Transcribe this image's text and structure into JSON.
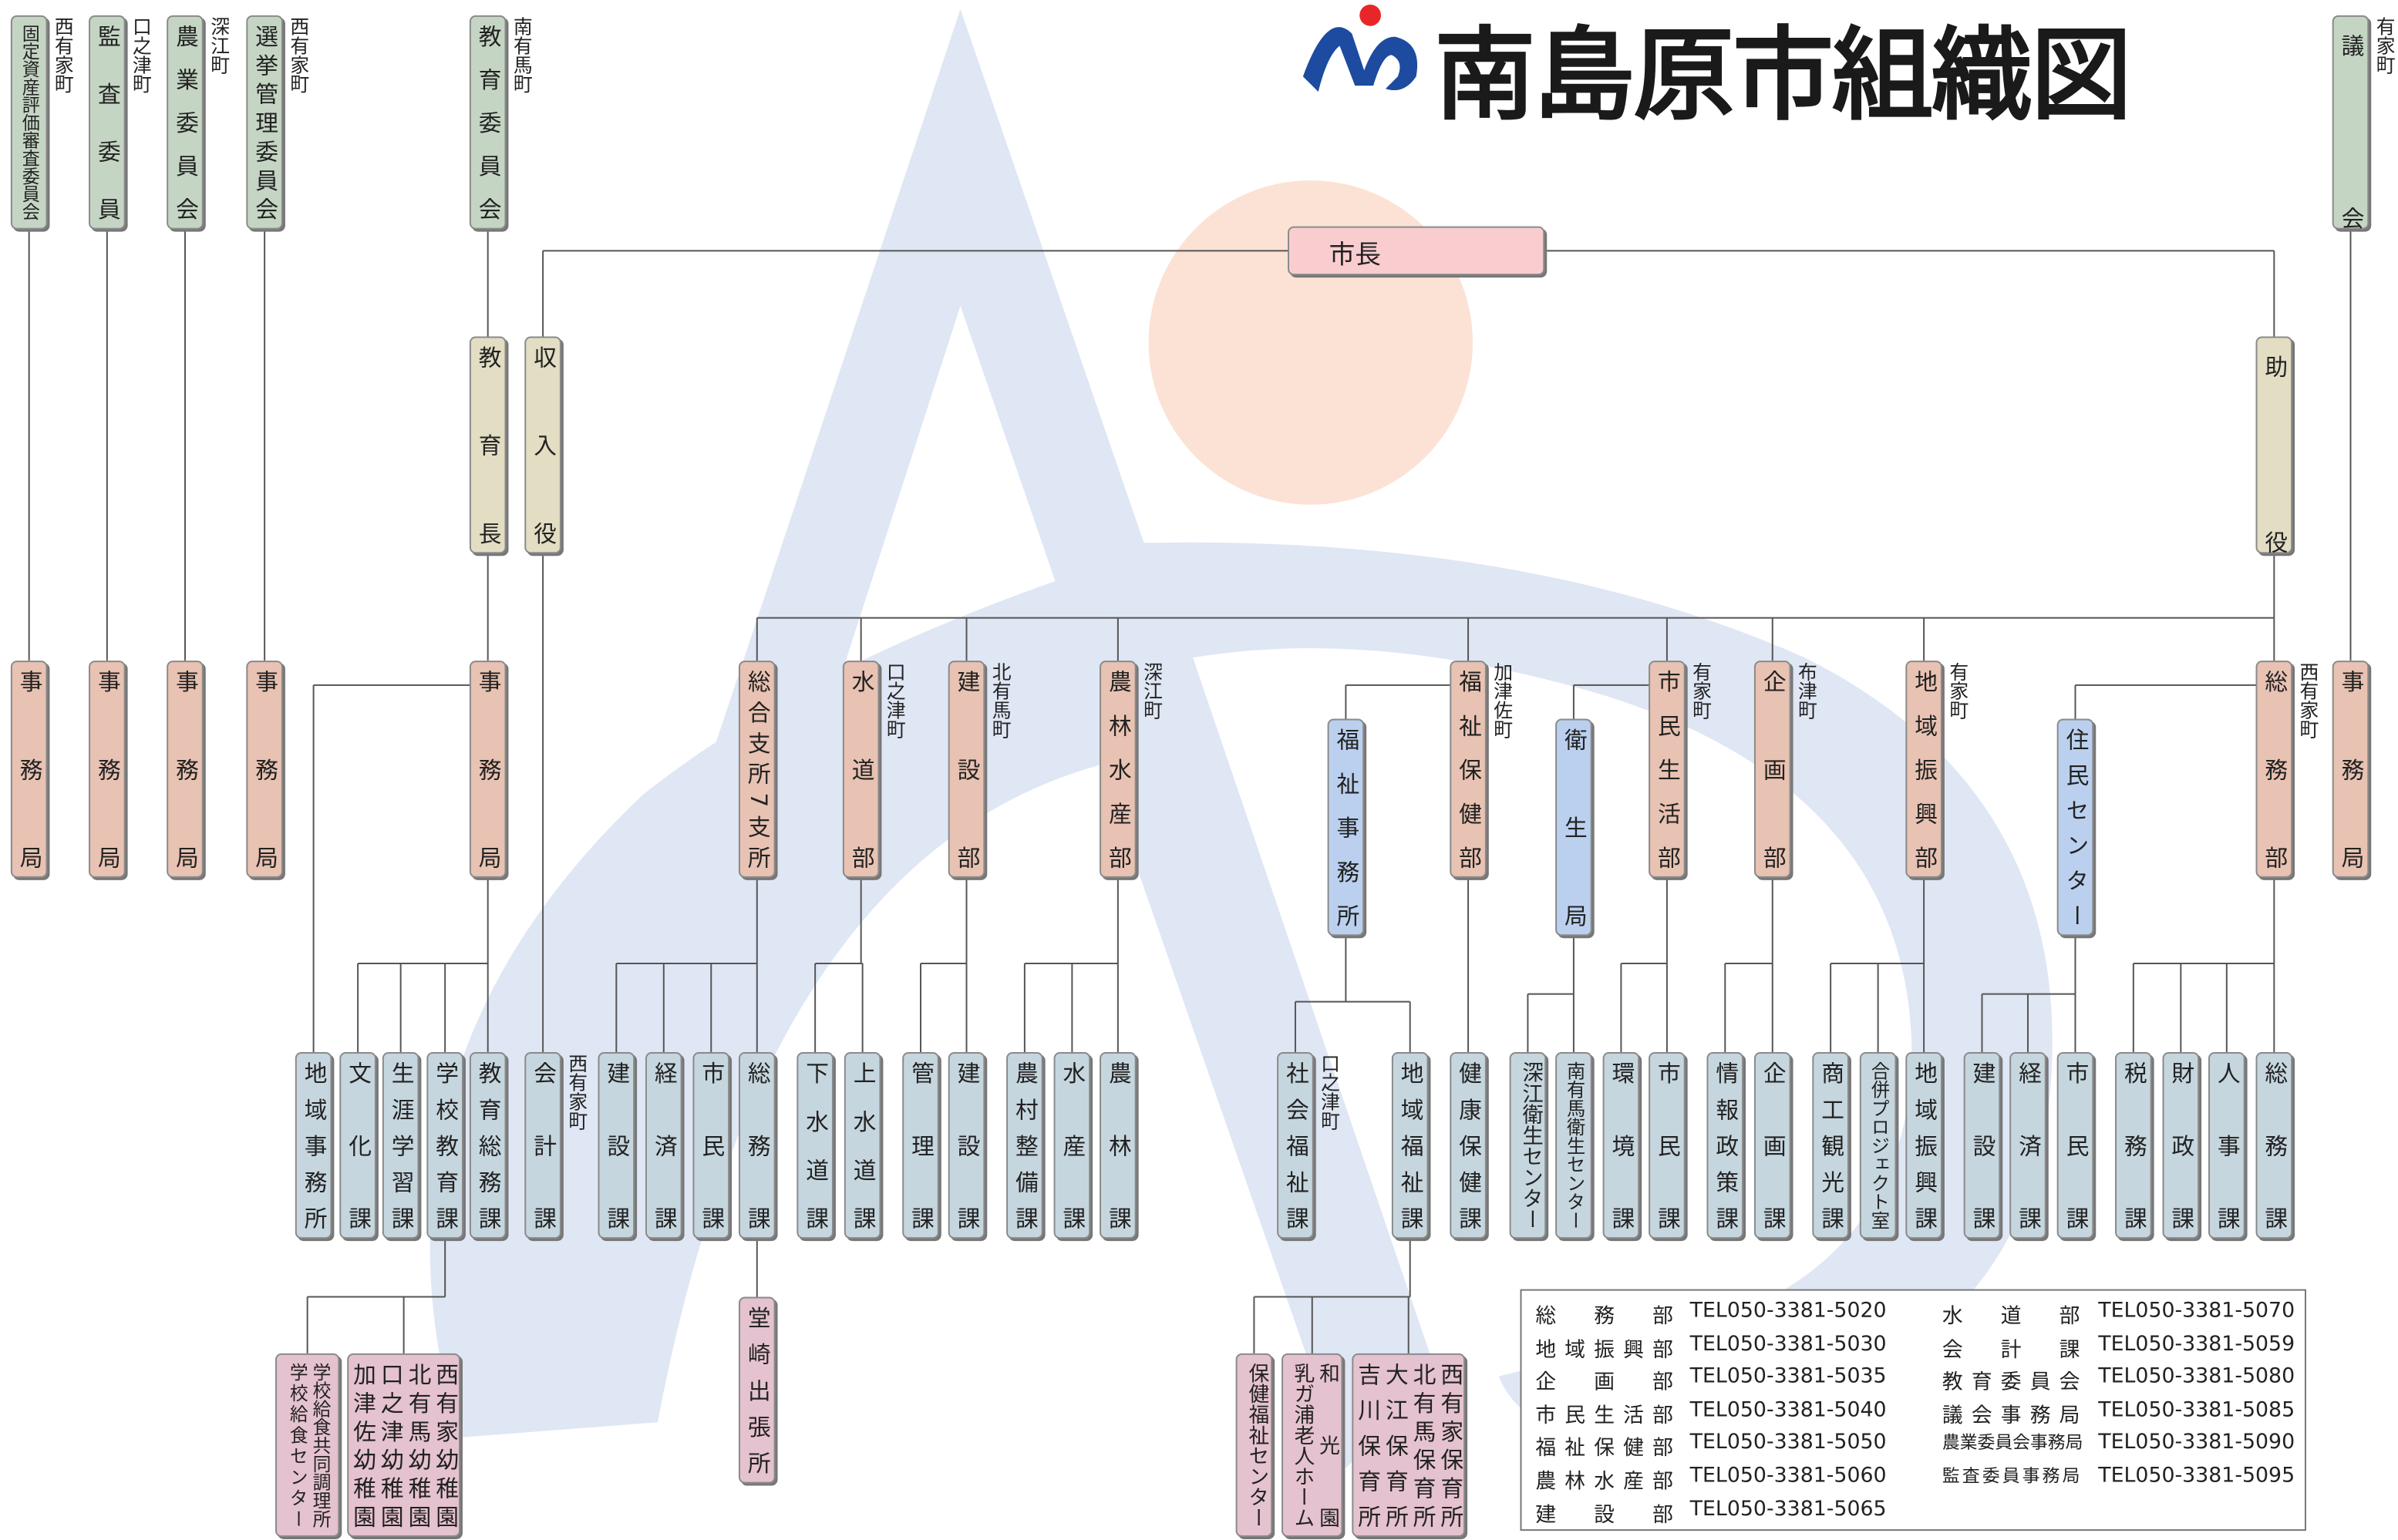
{
  "title": "南島原市組織図",
  "nodes": [
    {
      "label": "固定資産評価審査委員会",
      "location": "西有家町"
    },
    {
      "label": "監査委員",
      "location": "口之津町"
    },
    {
      "label": "農業委員会",
      "location": "深江町"
    },
    {
      "label": "選挙管理委員会",
      "location": "西有家町"
    },
    {
      "label": "教育委員会",
      "location": "南有馬町"
    },
    {
      "label": "議会",
      "location": "有家町"
    },
    {
      "label": "市長"
    },
    {
      "label": "教育長"
    },
    {
      "label": "収入役"
    },
    {
      "label": "助役"
    },
    {
      "label": "事務局"
    },
    {
      "label": "事務局"
    },
    {
      "label": "事務局"
    },
    {
      "label": "事務局"
    },
    {
      "label": "事務局"
    },
    {
      "label": "総合支所7支所"
    },
    {
      "label": "水道部",
      "location": "口之津町"
    },
    {
      "label": "建設部",
      "location": "北有馬町"
    },
    {
      "label": "農林水産部",
      "location": "深江町"
    },
    {
      "label": "福祉保健部",
      "location": "加津佐町"
    },
    {
      "label": "市民生活部",
      "location": "有家町"
    },
    {
      "label": "企画部",
      "location": "布津町"
    },
    {
      "label": "地域振興部",
      "location": "有家町"
    },
    {
      "label": "総務部",
      "location": "西有家町"
    },
    {
      "label": "事務局"
    },
    {
      "label": "福祉事務所"
    },
    {
      "label": "衛生局"
    },
    {
      "label": "住民センター"
    },
    {
      "label": "地域事務所"
    },
    {
      "label": "文化課"
    },
    {
      "label": "生涯学習課"
    },
    {
      "label": "学校教育課"
    },
    {
      "label": "教育総務課"
    },
    {
      "label": "会計課",
      "location": "西有家町"
    },
    {
      "label": "建設課"
    },
    {
      "label": "経済課"
    },
    {
      "label": "市民課"
    },
    {
      "label": "総務課"
    },
    {
      "label": "下水道課"
    },
    {
      "label": "上水道課"
    },
    {
      "label": "管理課"
    },
    {
      "label": "建設課"
    },
    {
      "label": "農村整備課"
    },
    {
      "label": "水産課"
    },
    {
      "label": "農林課"
    },
    {
      "label": "社会福祉課",
      "location": "口之津町"
    },
    {
      "label": "地域福祉課"
    },
    {
      "label": "健康保健課"
    },
    {
      "label": "深江衛生センター"
    },
    {
      "label": "南有馬衛生センター"
    },
    {
      "label": "環境課"
    },
    {
      "label": "市民課"
    },
    {
      "label": "情報政策課"
    },
    {
      "label": "企画課"
    },
    {
      "label": "商工観光課"
    },
    {
      "label": "合併プロジェクト室"
    },
    {
      "label": "地域振興課"
    },
    {
      "label": "建設課"
    },
    {
      "label": "経済課"
    },
    {
      "label": "市民課"
    },
    {
      "label": "税務課"
    },
    {
      "label": "財政課"
    },
    {
      "label": "人事課"
    },
    {
      "label": "総務課"
    },
    {
      "label": "堂崎出張所"
    },
    {
      "labels": [
        "学校給食共同調理所",
        "学校給食センター"
      ]
    },
    {
      "labels": [
        "西有家幼稚園",
        "北有馬幼稚園",
        "口之津幼稚園",
        "加津佐幼稚園"
      ]
    },
    {
      "label": "保健福祉センター"
    },
    {
      "labels": [
        "和光園",
        "乳ガ浦老人ホーム"
      ]
    },
    {
      "labels": [
        "西有家保育所",
        "北有馬保育所",
        "大江保育所",
        "吉川保育所"
      ]
    }
  ],
  "phone_table": {
    "rows": [
      [
        "総務部",
        "TEL050-3381-5020",
        "水道部",
        "TEL050-3381-5070"
      ],
      [
        "地域振興部",
        "TEL050-3381-5030",
        "会計課",
        "TEL050-3381-5059"
      ],
      [
        "企画部",
        "TEL050-3381-5035",
        "教育委員会",
        "TEL050-3381-5080"
      ],
      [
        "市民生活部",
        "TEL050-3381-5040",
        "議会事務局",
        "TEL050-3381-5085"
      ],
      [
        "福祉保健部",
        "TEL050-3381-5050",
        "農業委員会事務局",
        "TEL050-3381-5090"
      ],
      [
        "農林水産部",
        "TEL050-3381-5060",
        "監査委員事務局",
        "TEL050-3381-5095"
      ],
      [
        "建設部",
        "TEL050-3381-5065"
      ]
    ]
  }
}
